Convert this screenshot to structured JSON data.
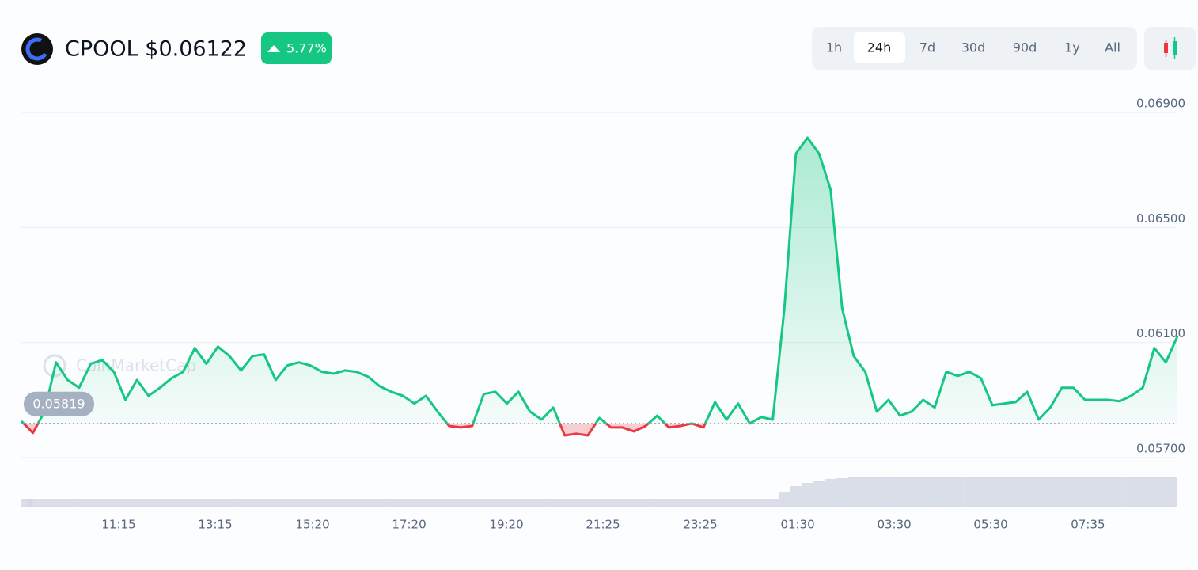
{
  "header": {
    "title": "CPOOL $0.06122",
    "change": "5.77%",
    "ranges": [
      "1h",
      "24h",
      "7d",
      "30d",
      "90d",
      "1y",
      "All"
    ],
    "selected_range": 1,
    "watermark": "CoinMarketCap"
  },
  "chart_data": {
    "type": "line",
    "series": [
      {
        "color": "#16c784",
        "below_color": "#ea3943",
        "values": [
          0.05827,
          0.05786,
          0.0586,
          0.06031,
          0.0597,
          0.05943,
          0.06026,
          0.06039,
          0.05998,
          0.05901,
          0.0597,
          0.05915,
          0.05943,
          0.05976,
          0.05998,
          0.06081,
          0.06026,
          0.06086,
          0.06053,
          0.06003,
          0.06053,
          0.06059,
          0.0597,
          0.0602,
          0.06031,
          0.0602,
          0.05998,
          0.05992,
          0.06003,
          0.05998,
          0.05981,
          0.05948,
          0.05929,
          0.05915,
          0.05888,
          0.05915,
          0.0586,
          0.0581,
          0.05805,
          0.0581,
          0.05921,
          0.05929,
          0.05888,
          0.05929,
          0.0586,
          0.05832,
          0.05874,
          0.05777,
          0.05783,
          0.05777,
          0.05838,
          0.05805,
          0.05805,
          0.05791,
          0.0581,
          0.05846,
          0.05805,
          0.0581,
          0.05819,
          0.05805,
          0.05893,
          0.05832,
          0.05888,
          0.05819,
          0.05841,
          0.05832,
          0.06219,
          0.06757,
          0.06812,
          0.06757,
          0.06632,
          0.06219,
          0.06053,
          0.05998,
          0.0586,
          0.05901,
          0.05846,
          0.0586,
          0.05901,
          0.05874,
          0.05998,
          0.05984,
          0.05998,
          0.05976,
          0.05882,
          0.05888,
          0.05893,
          0.05929,
          0.05832,
          0.05874,
          0.05943,
          0.05943,
          0.05901,
          0.05901,
          0.05901,
          0.05896,
          0.05915,
          0.05943,
          0.06081,
          0.06031,
          0.06122
        ]
      }
    ],
    "volume": [
      10,
      10,
      10,
      10,
      10,
      10,
      10,
      10,
      10,
      10,
      10,
      10,
      10,
      10,
      10,
      10,
      10,
      10,
      10,
      10,
      10,
      10,
      10,
      10,
      10,
      10,
      10,
      10,
      10,
      10,
      10,
      10,
      10,
      10,
      10,
      10,
      10,
      10,
      10,
      10,
      10,
      10,
      10,
      10,
      10,
      10,
      10,
      10,
      10,
      10,
      10,
      10,
      10,
      10,
      10,
      10,
      10,
      10,
      10,
      10,
      10,
      10,
      10,
      10,
      10,
      10,
      18,
      26,
      30,
      33,
      35,
      36,
      37,
      37,
      37,
      37,
      37,
      37,
      37,
      37,
      37,
      37,
      37,
      37,
      37,
      37,
      37,
      37,
      37,
      37,
      37,
      37,
      37,
      37,
      37,
      37,
      37,
      37,
      38,
      38,
      38
    ],
    "baseline": 0.05819,
    "xlim": [
      0,
      100
    ],
    "xticks": [
      {
        "value": 8.42,
        "label": "11:15"
      },
      {
        "value": 16.77,
        "label": "13:15"
      },
      {
        "value": 25.19,
        "label": "15:20"
      },
      {
        "value": 33.54,
        "label": "17:20"
      },
      {
        "value": 41.96,
        "label": "19:20"
      },
      {
        "value": 50.31,
        "label": "21:25"
      },
      {
        "value": 58.73,
        "label": "23:25"
      },
      {
        "value": 67.15,
        "label": "01:30"
      },
      {
        "value": 75.5,
        "label": "03:30"
      },
      {
        "value": 83.85,
        "label": "05:30"
      },
      {
        "value": 92.26,
        "label": "07:35"
      }
    ],
    "ylim": [
      0.057,
      0.069
    ],
    "yticks": [
      {
        "value": 0.069,
        "label": "0.06900"
      },
      {
        "value": 0.065,
        "label": "0.06500"
      },
      {
        "value": 0.061,
        "label": "0.06100"
      },
      {
        "value": 0.057,
        "label": "0.05700"
      }
    ],
    "grid": true
  }
}
